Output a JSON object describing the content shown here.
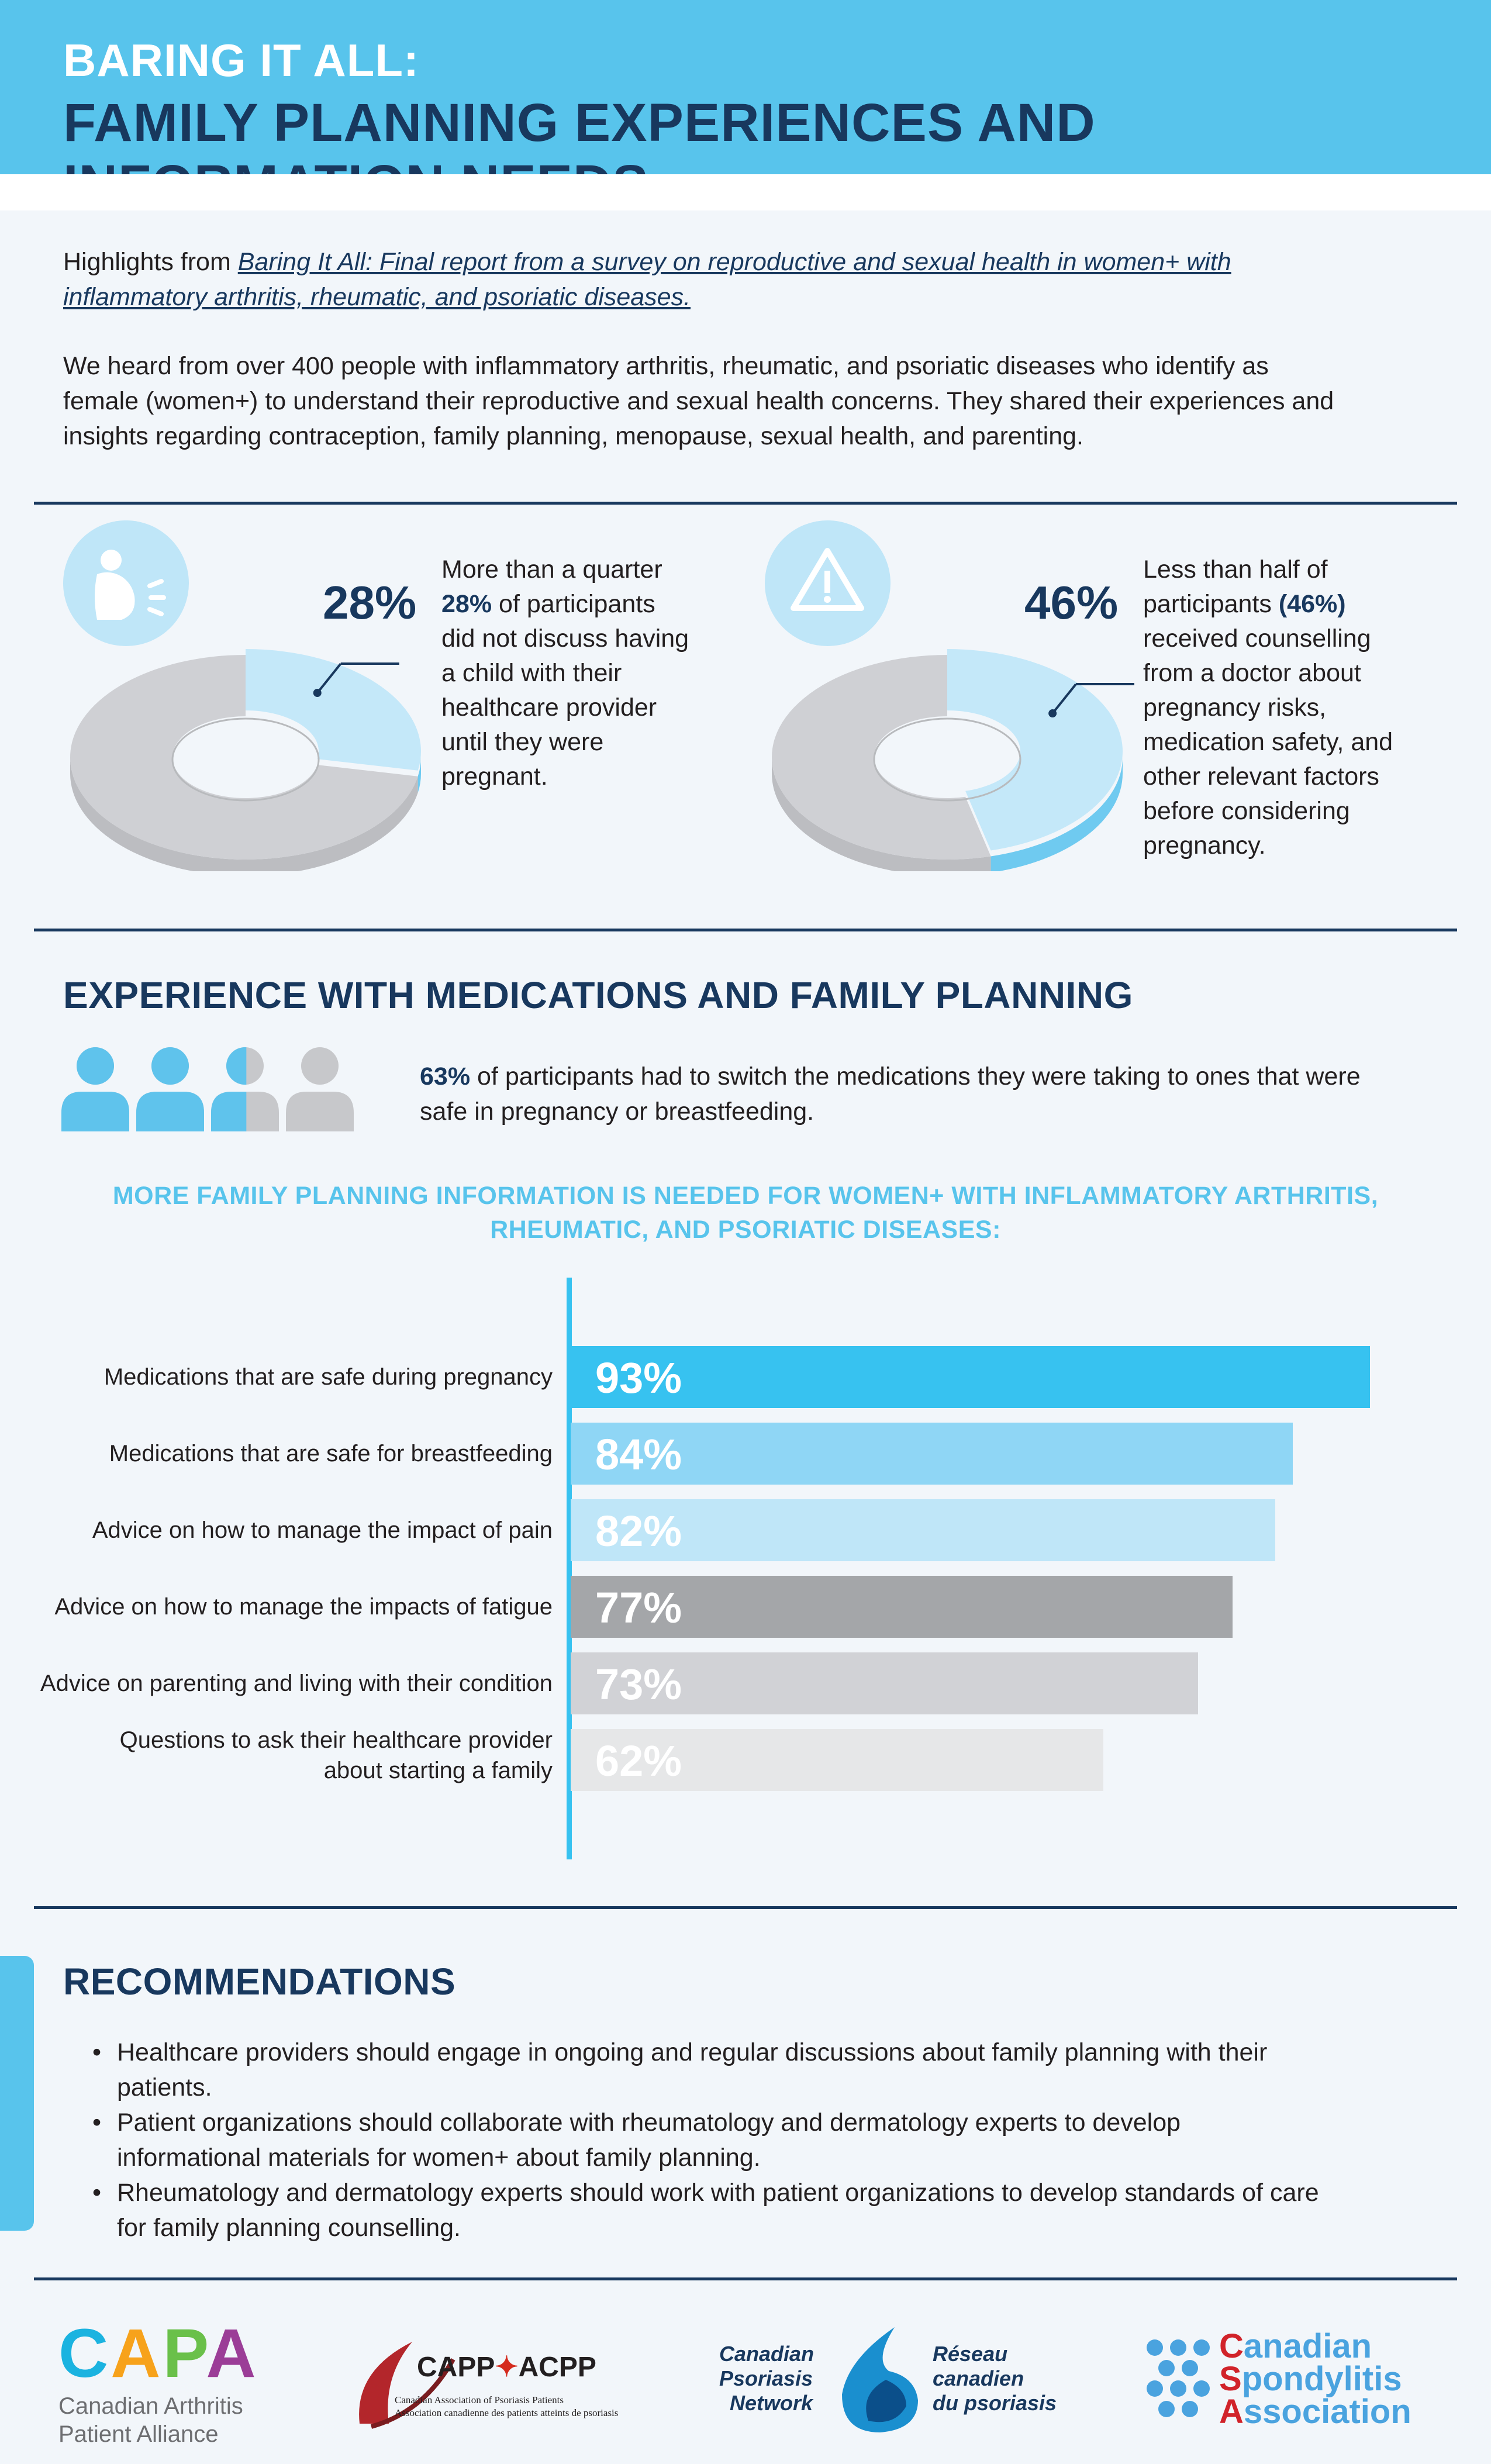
{
  "header": {
    "line1": "BARING IT ALL:",
    "line2": "FAMILY PLANNING EXPERIENCES AND INFORMATION NEEDS"
  },
  "intro": {
    "lead": "Highlights from ",
    "link_line1": "Baring It All: Final report from a survey on reproductive and sexual health in women+ with",
    "link_line2": "inflammatory arthritis, rheumatic, and psoriatic diseases.",
    "para_line1": "We heard from over 400 people with inflammatory arthritis, rheumatic, and psoriatic diseases who identify as",
    "para_line2": "female (women+) to understand their reproductive and sexual health concerns. They shared their experiences and",
    "para_line3": "insights regarding contraception, family planning, menopause, sexual health, and parenting."
  },
  "stats": {
    "left": {
      "value": 28,
      "label": "28%",
      "text_lines": [
        "More than a quarter",
        "(28%) of participants",
        "did not discuss having",
        "a child with their",
        "healthcare provider",
        "until they were",
        "pregnant."
      ]
    },
    "right": {
      "value": 46,
      "label": "46%",
      "text_lines": [
        "Less than half of",
        "participants (46%)",
        "received counselling",
        "from a doctor about",
        "pregnancy risks,",
        "medication safety, and",
        "other relevant factors",
        "before considering",
        "pregnancy."
      ]
    }
  },
  "medications": {
    "title": "EXPERIENCE WITH MEDICATIONS AND FAMILY PLANNING",
    "stat_value": "63%",
    "stat_line1": " of participants had to switch the medications they were taking to ones that were",
    "stat_line2": "safe in pregnancy or breastfeeding.",
    "people_fraction": 0.63
  },
  "chart_subhead": {
    "line1": "MORE FAMILY PLANNING INFORMATION IS NEEDED FOR WOMEN+ WITH INFLAMMATORY ARTHRITIS,",
    "line2": "RHEUMATIC, AND PSORIATIC DISEASES:"
  },
  "chart_data": {
    "type": "bar",
    "orientation": "horizontal",
    "categories": [
      "Medications that are safe during pregnancy",
      "Medications that are safe for breastfeeding",
      "Advice on how to manage the impact of pain",
      "Advice on how to manage the impacts of fatigue",
      "Advice on parenting and living with their condition",
      "Questions to ask their healthcare provider about starting a family"
    ],
    "category_lines": [
      [
        "Medications that are safe during pregnancy"
      ],
      [
        "Medications that are safe for breastfeeding"
      ],
      [
        "Advice on how to manage the impact of pain"
      ],
      [
        "Advice on how to manage the impacts of fatigue"
      ],
      [
        "Advice on parenting and living with their condition"
      ],
      [
        "Questions to ask their healthcare provider",
        "about starting a family"
      ]
    ],
    "values": [
      93,
      84,
      82,
      77,
      73,
      62
    ],
    "value_labels": [
      "93%",
      "84%",
      "82%",
      "77%",
      "73%",
      "62%"
    ],
    "colors": [
      "#37c2f0",
      "#8fd6f5",
      "#bfe6f8",
      "#a4a6a9",
      "#d1d2d6",
      "#e6e7e8"
    ],
    "xlim": [
      0,
      100
    ],
    "grid": false
  },
  "recommendations": {
    "title": "RECOMMENDATIONS",
    "items": [
      [
        "Healthcare providers should engage in ongoing and regular discussions about family planning with their",
        "patients."
      ],
      [
        "Patient organizations should collaborate with rheumatology and dermatology experts to develop",
        "informational materials for women+ about family planning."
      ],
      [
        "Rheumatology and dermatology experts should work with patient organizations to develop standards of care",
        "for family planning counselling."
      ]
    ]
  },
  "logos": {
    "capa": {
      "letters": [
        "C",
        "A",
        "P",
        "A"
      ],
      "line1": "Canadian Arthritis",
      "line2": "Patient Alliance"
    },
    "capp": {
      "name": "CAPP",
      "name2": "ACPP",
      "line1": "Canadian Association of Psoriasis Patients",
      "line2": "Association canadienne des patients atteints de psoriasis"
    },
    "cpn": {
      "en": [
        "Canadian",
        "Psoriasis",
        "Network"
      ],
      "fr": [
        "Réseau",
        "canadien",
        "du psoriasis"
      ]
    },
    "csa": {
      "line1": "Canadian",
      "line2": "Spondylitis",
      "line3": "Association"
    }
  },
  "colors": {
    "navy": "#18385e",
    "sky": "#58c4ec",
    "light_blue": "#bfe6f8",
    "gray": "#cfd0d4"
  }
}
